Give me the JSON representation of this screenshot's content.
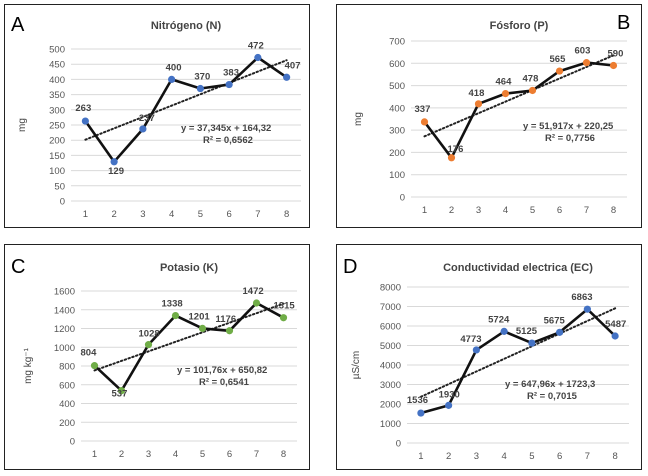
{
  "chart_data": [
    {
      "letter": "A",
      "type": "line",
      "title": "Nitrógeno (N)",
      "ylabel": "mg",
      "xlabel": "",
      "categories": [
        "1",
        "2",
        "3",
        "4",
        "5",
        "6",
        "7",
        "8"
      ],
      "values": [
        263,
        129,
        237,
        400,
        370,
        383,
        472,
        407
      ],
      "data_labels": [
        "263",
        "129",
        "237",
        "400",
        "370",
        "383",
        "472",
        "407"
      ],
      "ylim": [
        0,
        500
      ],
      "yticks": [
        0,
        50,
        100,
        150,
        200,
        250,
        300,
        350,
        400,
        450,
        500
      ],
      "trendline": {
        "slope": 37.345,
        "intercept": 164.32
      },
      "equation": "y = 37,345x + 164,32",
      "r2": "R² = 0,6562",
      "marker_color": "#4472c4",
      "grid": true
    },
    {
      "letter": "B",
      "type": "line",
      "title": "Fósforo (P)",
      "ylabel": "mg",
      "xlabel": "",
      "categories": [
        "1",
        "2",
        "3",
        "4",
        "5",
        "6",
        "7",
        "8"
      ],
      "values": [
        337,
        176,
        418,
        464,
        478,
        565,
        603,
        590
      ],
      "data_labels": [
        "337",
        "176",
        "418",
        "464",
        "478",
        "565",
        "603",
        "590"
      ],
      "ylim": [
        0,
        700
      ],
      "yticks": [
        0,
        100,
        200,
        300,
        400,
        500,
        600,
        700
      ],
      "trendline": {
        "slope": 51.917,
        "intercept": 220.25
      },
      "equation": "y = 51,917x + 220,25",
      "r2": "R² = 0,7756",
      "marker_color": "#ed7d31",
      "grid": true
    },
    {
      "letter": "C",
      "type": "line",
      "title": "Potasio (K)",
      "ylabel": "mg kg⁻¹",
      "xlabel": "",
      "categories": [
        "1",
        "2",
        "3",
        "4",
        "5",
        "6",
        "7",
        "8"
      ],
      "values": [
        804,
        537,
        1028,
        1338,
        1201,
        1176,
        1472,
        1315
      ],
      "data_labels": [
        "804",
        "537",
        "1028",
        "1338",
        "1201",
        "1176",
        "1472",
        "1315"
      ],
      "ylim": [
        0,
        1600
      ],
      "yticks": [
        0,
        200,
        400,
        600,
        800,
        1000,
        1200,
        1400,
        1600
      ],
      "trendline": {
        "slope": 101.76,
        "intercept": 650.82
      },
      "equation": "y = 101,76x + 650,82",
      "r2": "R² = 0,6541",
      "marker_color": "#70ad47",
      "grid": true
    },
    {
      "letter": "D",
      "type": "line",
      "title": "Conductividad electrica (EC)",
      "ylabel": "µS/cm",
      "xlabel": "",
      "categories": [
        "1",
        "2",
        "3",
        "4",
        "5",
        "6",
        "7",
        "8"
      ],
      "values": [
        1536,
        1930,
        4773,
        5724,
        5125,
        5675,
        6863,
        5487
      ],
      "data_labels": [
        "1536",
        "1930",
        "4773",
        "5724",
        "5125",
        "5675",
        "6863",
        "5487"
      ],
      "ylim": [
        0,
        8000
      ],
      "yticks": [
        0,
        1000,
        2000,
        3000,
        4000,
        5000,
        6000,
        7000,
        8000
      ],
      "trendline": {
        "slope": 647.96,
        "intercept": 1723.3
      },
      "equation": "y = 647,96x + 1723,3",
      "r2": "R² = 0,7015",
      "marker_color": "#4472c4",
      "grid": true
    }
  ]
}
